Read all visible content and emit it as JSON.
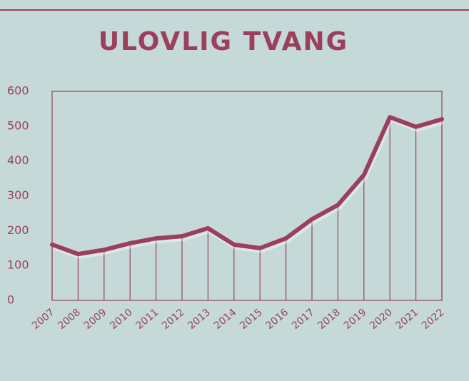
{
  "chart_data": {
    "type": "line",
    "title": "ULOVLIG TVANG",
    "categories": [
      "2007",
      "2008",
      "2009",
      "2010",
      "2011",
      "2012",
      "2013",
      "2014",
      "2015",
      "2016",
      "2017",
      "2018",
      "2019",
      "2020",
      "2021",
      "2022"
    ],
    "values": [
      160,
      133,
      145,
      164,
      178,
      184,
      207,
      160,
      150,
      178,
      233,
      274,
      360,
      526,
      498,
      520
    ],
    "color": "#9b3f5c",
    "drop_lines": true,
    "ylim": [
      0,
      600
    ],
    "yticks": [
      0,
      100,
      200,
      300,
      400,
      500,
      600
    ]
  }
}
